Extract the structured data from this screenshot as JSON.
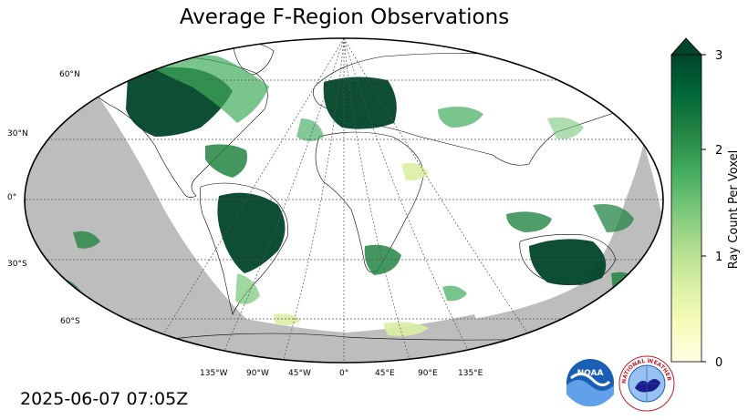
{
  "title": "Average F-Region Observations",
  "timestamp": "2025-06-07 07:05Z",
  "lat_labels": [
    "60°N",
    "30°N",
    "0°",
    "30°S",
    "60°S"
  ],
  "lon_labels": [
    "135°W",
    "90°W",
    "45°W",
    "0°",
    "45°E",
    "90°E",
    "135°E"
  ],
  "colorbar": {
    "label": "Ray Count Per Voxel",
    "ticks": [
      "0",
      "1",
      "2",
      "3"
    ],
    "min": 0,
    "max": 3,
    "extend": "max",
    "colors": [
      "#ffffe5",
      "#f7fcb9",
      "#d9f0a3",
      "#addd8e",
      "#78c679",
      "#41ab5d",
      "#238443",
      "#006837",
      "#004529"
    ]
  },
  "colors": {
    "night_shade": "#bdbdbd",
    "ocean": "#ffffff",
    "grid": "#555555",
    "dense": "#004529"
  },
  "logos": {
    "noaa": "NOAA",
    "nws": "NATIONAL WEATHER SERVICE"
  }
}
